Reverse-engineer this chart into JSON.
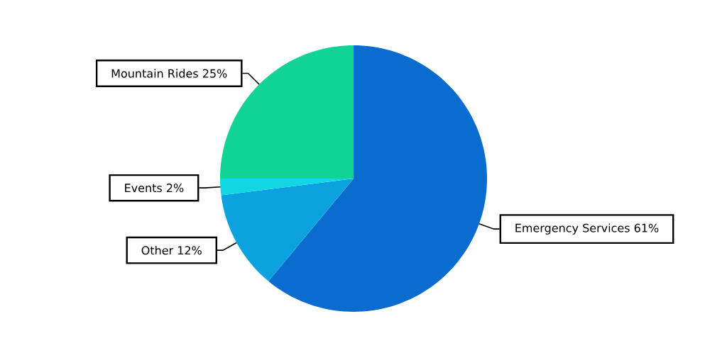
{
  "chart_data": {
    "type": "pie",
    "categories": [
      "Emergency Services",
      "Other",
      "Events",
      "Mountain Rides"
    ],
    "values": [
      61,
      12,
      2,
      25
    ],
    "value_labels": [
      "61%",
      "12%",
      "2%",
      "25%"
    ],
    "colors": [
      "#0a6ccf",
      "#0ca2e0",
      "#12d6e2",
      "#10d394"
    ]
  }
}
